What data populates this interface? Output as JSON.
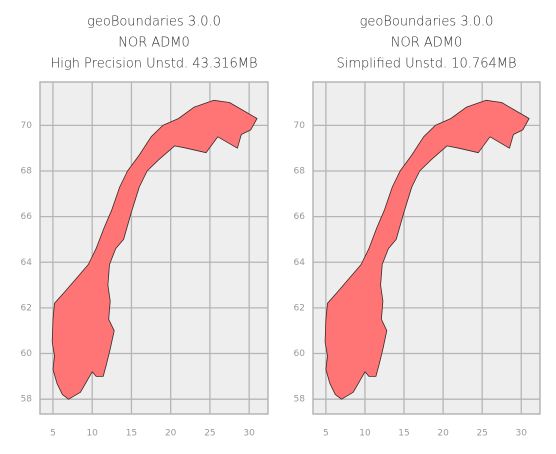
{
  "chart_data": [
    {
      "type": "map",
      "title": [
        "geoBoundaries 3.0.0",
        "NOR ADM0",
        "High Precision Unstd. 43.316MB"
      ],
      "xlim": [
        3.35,
        32.4
      ],
      "ylim": [
        57.35,
        71.9
      ],
      "xticks": [
        5,
        10,
        15,
        20,
        25,
        30
      ],
      "yticks": [
        58,
        60,
        62,
        64,
        66,
        68,
        70
      ],
      "grid": true,
      "color": "#ff7474"
    },
    {
      "type": "map",
      "title": [
        "geoBoundaries 3.0.0",
        "NOR ADM0",
        "Simplified Unstd. 10.764MB"
      ],
      "xlim": [
        3.35,
        32.4
      ],
      "ylim": [
        57.35,
        71.9
      ],
      "xticks": [
        5,
        10,
        15,
        20,
        25,
        30
      ],
      "yticks": [
        58,
        60,
        62,
        64,
        66,
        68,
        70
      ],
      "grid": true,
      "color": "#ff7474"
    }
  ]
}
